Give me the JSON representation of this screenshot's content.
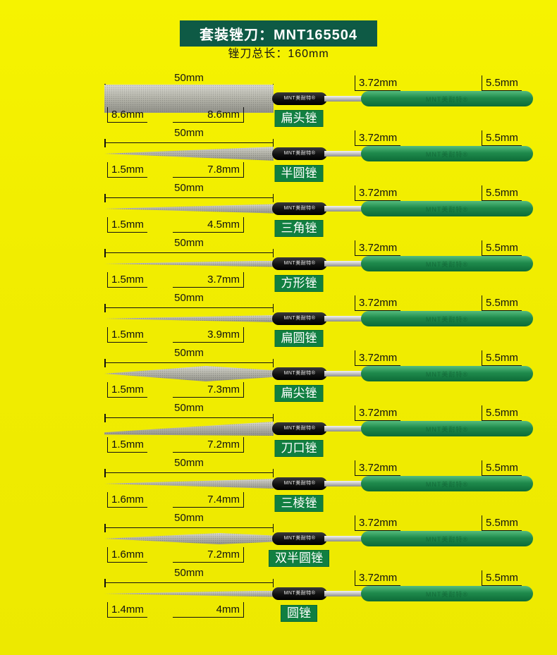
{
  "header": {
    "title": "套装锉刀：MNT165504",
    "subtitle": "锉刀总长：160mm"
  },
  "brand_label": "MNT美耐特®",
  "colors": {
    "background_yellow": "#f1ed00",
    "banner_green": "#0e5a45",
    "label_green": "#117f41",
    "handle_green": "#1f8a4c"
  },
  "files": [
    {
      "name": "扁头锉",
      "total": "50mm",
      "tip": "8.6mm",
      "end": "8.6mm",
      "shaft": "3.72mm",
      "handle": "5.5mm",
      "shape": "flat"
    },
    {
      "name": "半圆锉",
      "total": "50mm",
      "tip": "1.5mm",
      "end": "7.8mm",
      "shaft": "3.72mm",
      "handle": "5.5mm",
      "shape": "halfround"
    },
    {
      "name": "三角锉",
      "total": "50mm",
      "tip": "1.5mm",
      "end": "4.5mm",
      "shaft": "3.72mm",
      "handle": "5.5mm",
      "shape": "triangle"
    },
    {
      "name": "方形锉",
      "total": "50mm",
      "tip": "1.5mm",
      "end": "3.7mm",
      "shaft": "3.72mm",
      "handle": "5.5mm",
      "shape": "square"
    },
    {
      "name": "扁圆锉",
      "total": "50mm",
      "tip": "1.5mm",
      "end": "3.9mm",
      "shaft": "3.72mm",
      "handle": "5.5mm",
      "shape": "flatround"
    },
    {
      "name": "扁尖锉",
      "total": "50mm",
      "tip": "1.5mm",
      "end": "7.3mm",
      "shaft": "3.72mm",
      "handle": "5.5mm",
      "shape": "leaf"
    },
    {
      "name": "刀口锉",
      "total": "50mm",
      "tip": "1.5mm",
      "end": "7.2mm",
      "shaft": "3.72mm",
      "handle": "5.5mm",
      "shape": "knife"
    },
    {
      "name": "三棱锉",
      "total": "50mm",
      "tip": "1.6mm",
      "end": "7.4mm",
      "shaft": "3.72mm",
      "handle": "5.5mm",
      "shape": "trisquare"
    },
    {
      "name": "双半圆锉",
      "total": "50mm",
      "tip": "1.6mm",
      "end": "7.2mm",
      "shaft": "3.72mm",
      "handle": "5.5mm",
      "shape": "doublehalf"
    },
    {
      "name": "圆锉",
      "total": "50mm",
      "tip": "1.4mm",
      "end": "4mm",
      "shaft": "3.72mm",
      "handle": "5.5mm",
      "shape": "round"
    }
  ]
}
